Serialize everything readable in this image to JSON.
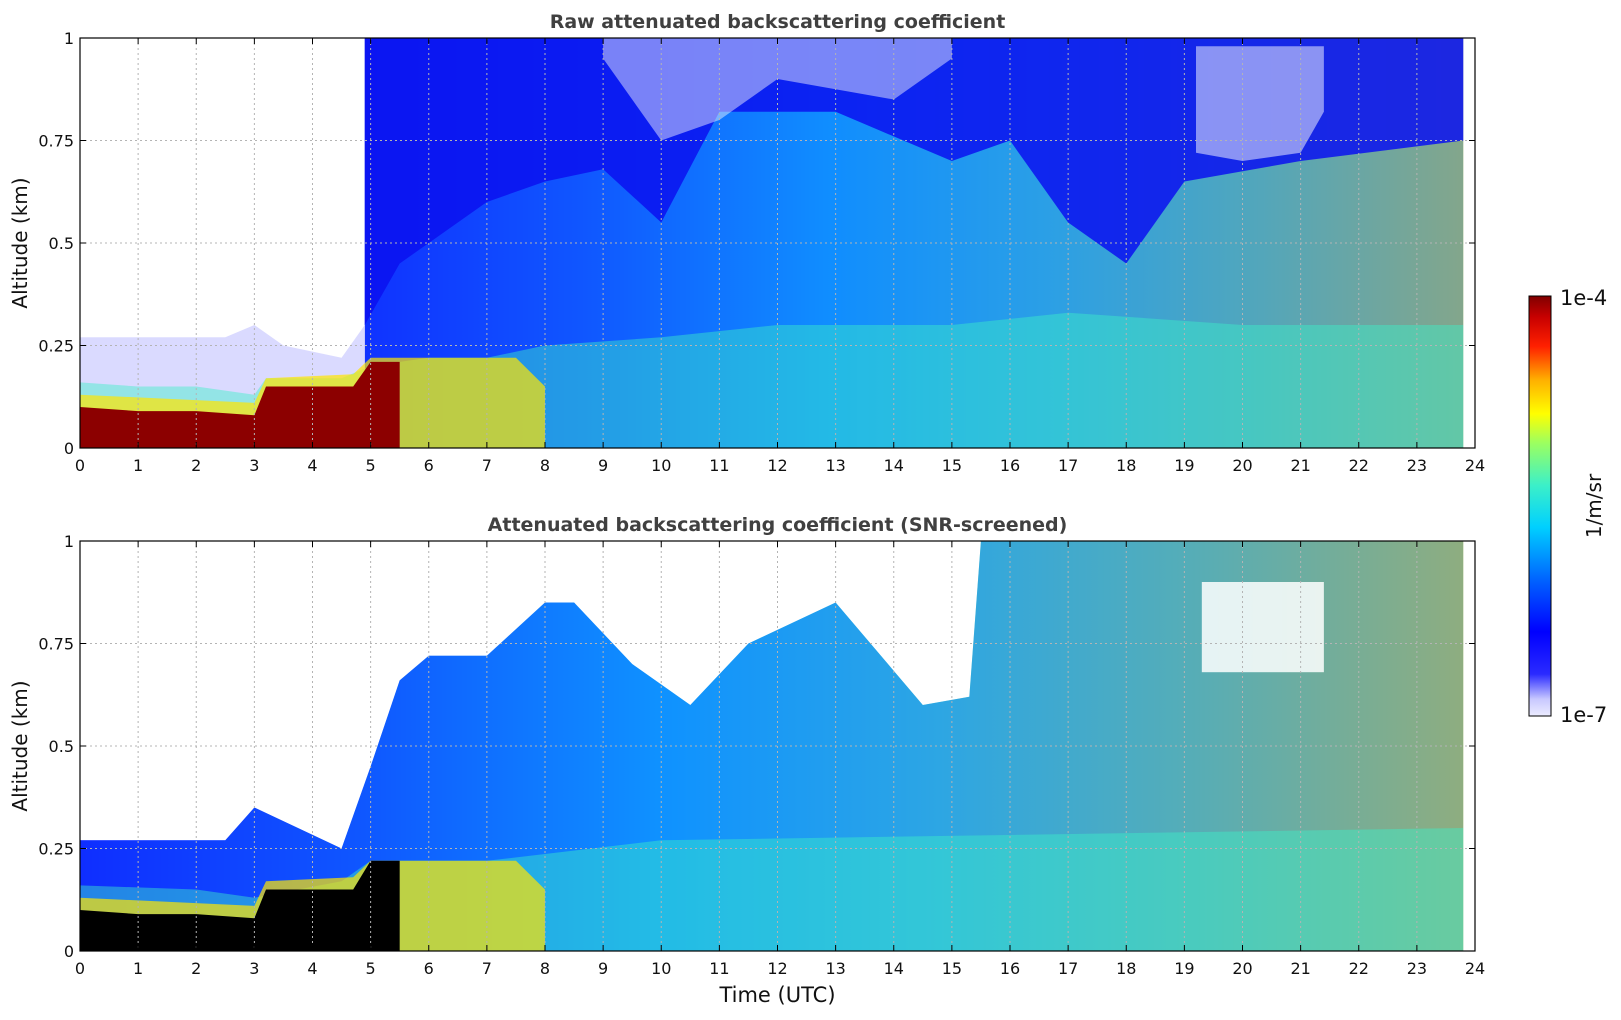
{
  "figure": {
    "xlabel": "Time (UTC)",
    "colorbar": {
      "label": "1/m/sr",
      "max_label": "1e-4",
      "min_label": "1e-7",
      "scale": "log",
      "range": [
        1e-07,
        0.0001
      ]
    }
  },
  "chart_data": [
    {
      "type": "heatmap",
      "title": "Raw attenuated backscattering coefficient",
      "xlabel": "",
      "ylabel": "Altitude (km)",
      "xlim": [
        0,
        24
      ],
      "ylim": [
        0,
        1
      ],
      "xticks": [
        "0",
        "1",
        "2",
        "3",
        "4",
        "5",
        "6",
        "7",
        "8",
        "9",
        "10",
        "11",
        "12",
        "13",
        "14",
        "15",
        "16",
        "17",
        "18",
        "19",
        "20",
        "21",
        "22",
        "23",
        "24"
      ],
      "yticks": [
        "0",
        "0.25",
        "0.5",
        "0.75",
        "1"
      ],
      "grid": true,
      "data_end_hour": 23.8,
      "features": {
        "surface_layer_top_km": [
          [
            0,
            0.16
          ],
          [
            1,
            0.15
          ],
          [
            2,
            0.15
          ],
          [
            3,
            0.13
          ],
          [
            3.2,
            0.17
          ],
          [
            4.5,
            0.17
          ],
          [
            5,
            0.2
          ],
          [
            6,
            0.22
          ],
          [
            7,
            0.22
          ],
          [
            8,
            0.25
          ],
          [
            10,
            0.27
          ],
          [
            12,
            0.3
          ],
          [
            15,
            0.3
          ],
          [
            17,
            0.33
          ],
          [
            20,
            0.3
          ],
          [
            23.8,
            0.3
          ]
        ],
        "dense_core_top_km": [
          [
            0,
            0.1
          ],
          [
            1,
            0.09
          ],
          [
            2,
            0.09
          ],
          [
            3,
            0.08
          ],
          [
            3.2,
            0.15
          ],
          [
            4.7,
            0.15
          ],
          [
            5,
            0.21
          ],
          [
            5.5,
            0.21
          ]
        ],
        "mixed_layer_top_km": [
          [
            4.9,
            0.3
          ],
          [
            5.5,
            0.45
          ],
          [
            6,
            0.5
          ],
          [
            7,
            0.6
          ],
          [
            8,
            0.65
          ],
          [
            9,
            0.68
          ],
          [
            10,
            0.55
          ],
          [
            11,
            0.82
          ],
          [
            13,
            0.82
          ],
          [
            15,
            0.7
          ],
          [
            16,
            0.75
          ],
          [
            17,
            0.55
          ],
          [
            18,
            0.45
          ],
          [
            19,
            0.65
          ],
          [
            21,
            0.7
          ],
          [
            23.8,
            0.75
          ]
        ],
        "noise_top_region_from_hour": 4.9,
        "clear_region_hours": [
          0,
          4.9
        ]
      }
    },
    {
      "type": "heatmap",
      "title": "Attenuated backscattering coefficient (SNR-screened)",
      "xlabel": "Time (UTC)",
      "ylabel": "Altitude (km)",
      "xlim": [
        0,
        24
      ],
      "ylim": [
        0,
        1
      ],
      "xticks": [
        "0",
        "1",
        "2",
        "3",
        "4",
        "5",
        "6",
        "7",
        "8",
        "9",
        "10",
        "11",
        "12",
        "13",
        "14",
        "15",
        "16",
        "17",
        "18",
        "19",
        "20",
        "21",
        "22",
        "23",
        "24"
      ],
      "yticks": [
        "0",
        "0.25",
        "0.5",
        "0.75",
        "1"
      ],
      "grid": true,
      "data_end_hour": 23.8,
      "features": {
        "signal_top_km": [
          [
            0,
            0.27
          ],
          [
            2.5,
            0.27
          ],
          [
            3,
            0.35
          ],
          [
            4.5,
            0.25
          ],
          [
            5,
            0.45
          ],
          [
            5.5,
            0.66
          ],
          [
            6,
            0.72
          ],
          [
            7,
            0.72
          ],
          [
            8,
            0.85
          ],
          [
            8.5,
            0.85
          ],
          [
            9.5,
            0.7
          ],
          [
            10.5,
            0.6
          ],
          [
            11.5,
            0.75
          ],
          [
            13,
            0.85
          ],
          [
            14.5,
            0.6
          ],
          [
            15.3,
            0.62
          ],
          [
            15.5,
            1
          ],
          [
            23.8,
            1
          ]
        ],
        "saturated_core_top_km": [
          [
            0,
            0.1
          ],
          [
            1,
            0.09
          ],
          [
            2,
            0.09
          ],
          [
            3,
            0.08
          ],
          [
            3.2,
            0.15
          ],
          [
            4.7,
            0.15
          ],
          [
            5,
            0.22
          ],
          [
            5.5,
            0.22
          ]
        ],
        "cloud_gap_box": {
          "hours": [
            19.3,
            21.4
          ],
          "altitude_km": [
            0.68,
            0.9
          ]
        }
      }
    }
  ]
}
